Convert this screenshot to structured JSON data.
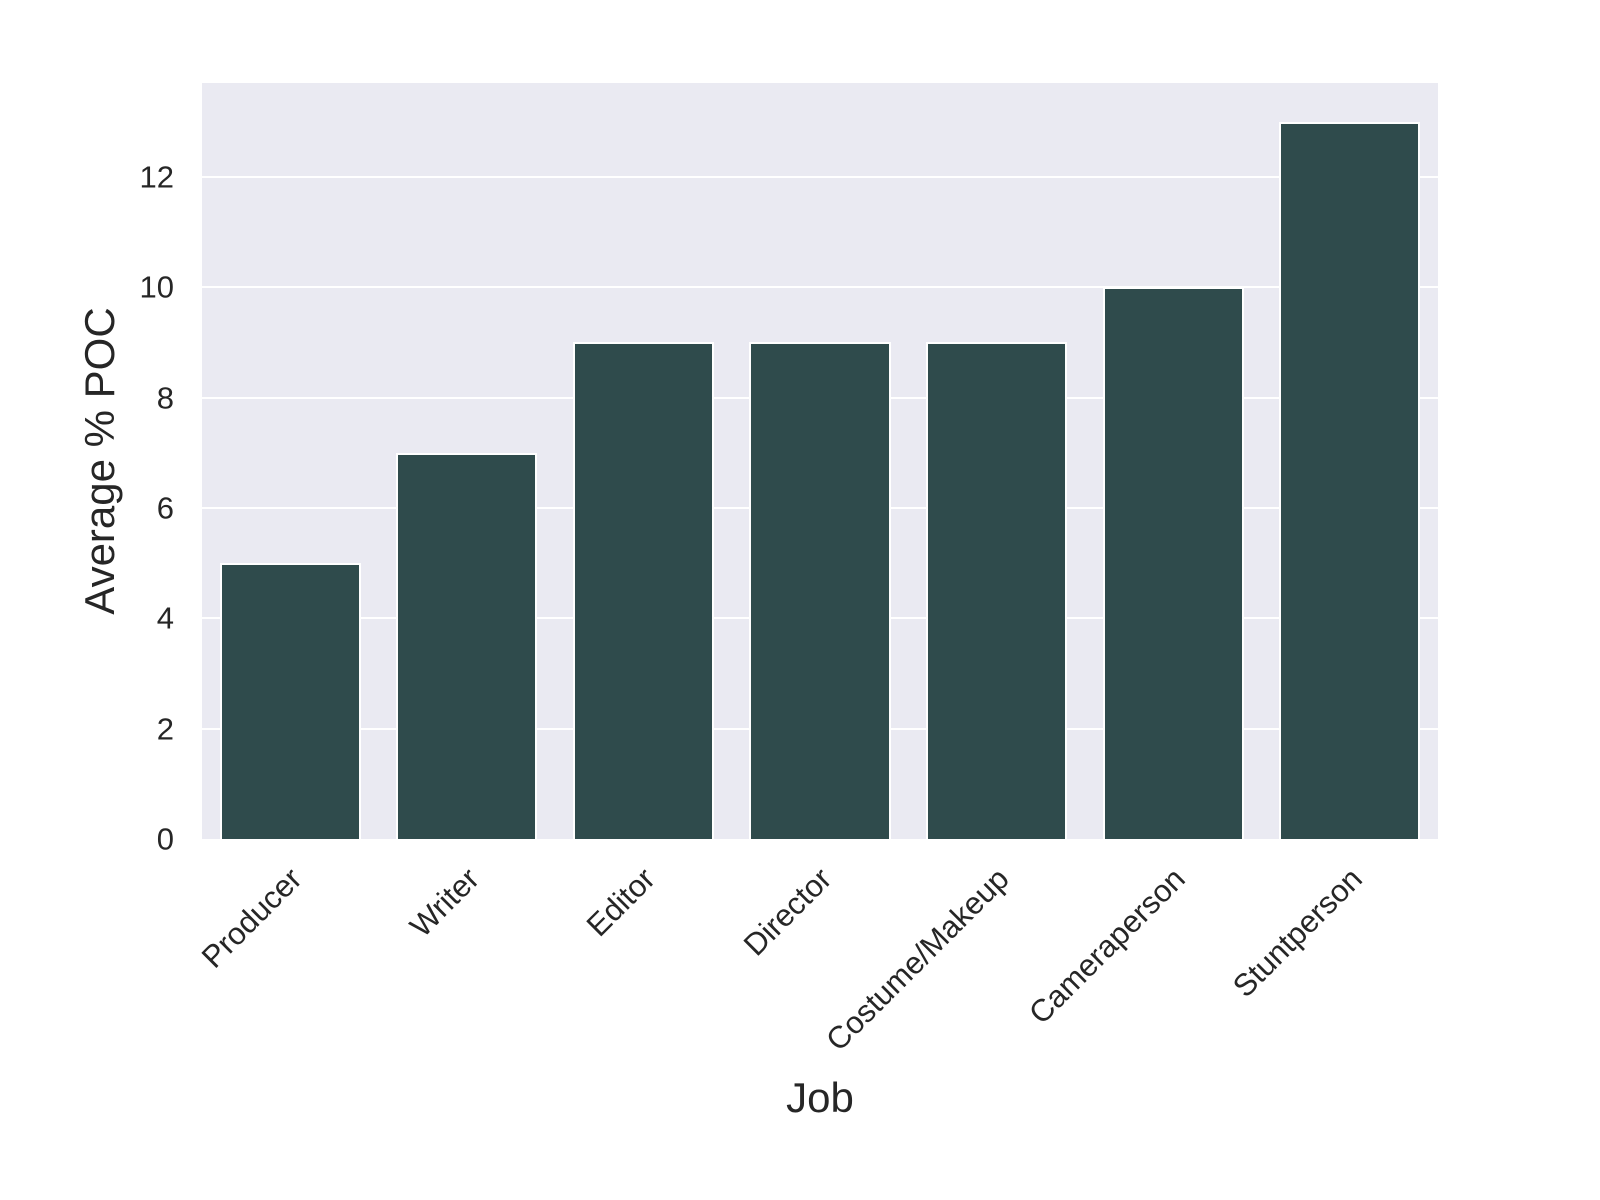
{
  "figure": {
    "background": "#ffffff"
  },
  "chart_data": {
    "type": "bar",
    "title": "",
    "xlabel": "Job",
    "ylabel": "Average % POC",
    "categories": [
      "Producer",
      "Writer",
      "Editor",
      "Director",
      "Costume/Makeup",
      "Cameraperson",
      "Stuntperson"
    ],
    "values": [
      5,
      7,
      9,
      9,
      9,
      10,
      13
    ],
    "yticks": [
      0,
      2,
      4,
      6,
      8,
      10,
      12
    ],
    "ylim": [
      0,
      13.7
    ],
    "x_tick_rotation_deg": 45,
    "grid": true,
    "legend": false,
    "bar_width_fraction": 0.8,
    "colors": {
      "bar": "#2f4b4c",
      "bar_edge": "#ffffff",
      "plot_background": "#eaeaf2",
      "gridline": "#ffffff",
      "text": "#262626"
    }
  }
}
